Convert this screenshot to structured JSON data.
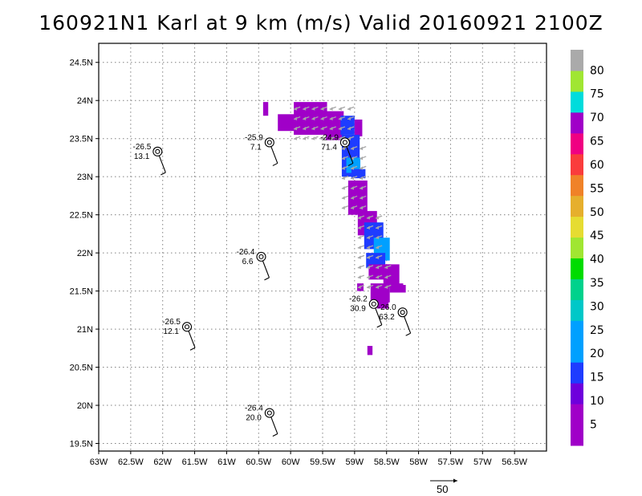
{
  "title": "160921N1 Karl at 9 km (m/s) Valid 20160921 2100Z",
  "map": {
    "lon_range": [
      -63,
      -56
    ],
    "lat_range": [
      19.4,
      24.75
    ],
    "lat_ticks": [
      {
        "value": 19.5,
        "label": "19.5N"
      },
      {
        "value": 20,
        "label": "20N"
      },
      {
        "value": 20.5,
        "label": "20.5N"
      },
      {
        "value": 21,
        "label": "21N"
      },
      {
        "value": 21.5,
        "label": "21.5N"
      },
      {
        "value": 22,
        "label": "22N"
      },
      {
        "value": 22.5,
        "label": "22.5N"
      },
      {
        "value": 23,
        "label": "23N"
      },
      {
        "value": 23.5,
        "label": "23.5N"
      },
      {
        "value": 24,
        "label": "24N"
      },
      {
        "value": 24.5,
        "label": "24.5N"
      }
    ],
    "lon_ticks": [
      {
        "value": -63,
        "label": "63W"
      },
      {
        "value": -62.5,
        "label": "62.5W"
      },
      {
        "value": -62,
        "label": "62W"
      },
      {
        "value": -61.5,
        "label": "61.5W"
      },
      {
        "value": -61,
        "label": "61W"
      },
      {
        "value": -60.5,
        "label": "60.5W"
      },
      {
        "value": -60,
        "label": "60W"
      },
      {
        "value": -59.5,
        "label": "59.5W"
      },
      {
        "value": -59,
        "label": "59W"
      },
      {
        "value": -58.5,
        "label": "58.5W"
      },
      {
        "value": -58,
        "label": "58W"
      },
      {
        "value": -57.5,
        "label": "57.5W"
      },
      {
        "value": -57,
        "label": "57W"
      },
      {
        "value": -56.5,
        "label": "56.5W"
      }
    ],
    "grid": "dotted"
  },
  "colorbar": {
    "bins": [
      {
        "label": "",
        "color": "#a000c8"
      },
      {
        "label": "5",
        "color": "#a000c8"
      },
      {
        "label": "",
        "color": "#6e00dc"
      },
      {
        "label": "10",
        "color": "#1e3cff"
      },
      {
        "label": "",
        "color": "#00a0ff"
      },
      {
        "label": "15",
        "color": "#00a0ff"
      },
      {
        "label": "20",
        "color": "#00c8c8"
      },
      {
        "label": "25",
        "color": "#00d28c"
      },
      {
        "label": "30",
        "color": "#00dc00"
      },
      {
        "label": "35",
        "color": "#a0e632"
      },
      {
        "label": "40",
        "color": "#e6dc32"
      },
      {
        "label": "45",
        "color": "#e6af2d"
      },
      {
        "label": "50",
        "color": "#f08228"
      },
      {
        "label": "55",
        "color": "#fa3c3c"
      },
      {
        "label": "60",
        "color": "#f00082"
      },
      {
        "label": "65",
        "color": "#a000c8"
      },
      {
        "label": "70",
        "color": "#00dcdc"
      },
      {
        "label": "75",
        "color": "#a0e632"
      },
      {
        "label": "80",
        "color": "#aaaaaa"
      }
    ],
    "labels": [
      "5",
      "10",
      "15",
      "20",
      "25",
      "30",
      "35",
      "40",
      "45",
      "50",
      "55",
      "60",
      "65",
      "70",
      "75",
      "80"
    ]
  },
  "dropsondes": [
    {
      "lon": -62.08,
      "lat": 23.33,
      "temp": "-26.5",
      "wind": "13.1"
    },
    {
      "lon": -60.33,
      "lat": 23.45,
      "temp": "-25.9",
      "wind": "7.1"
    },
    {
      "lon": -60.46,
      "lat": 21.95,
      "temp": "-26.4",
      "wind": "6.6"
    },
    {
      "lon": -61.62,
      "lat": 21.03,
      "temp": "-26.5",
      "wind": "12.1"
    },
    {
      "lon": -60.33,
      "lat": 19.9,
      "temp": "-26.4",
      "wind": "20.0"
    },
    {
      "lon": -59.15,
      "lat": 23.45,
      "temp": "-24.9",
      "wind": "71.4"
    },
    {
      "lon": -58.7,
      "lat": 21.33,
      "temp": "-26.2",
      "wind": "30.9"
    },
    {
      "lon": -58.25,
      "lat": 21.22,
      "temp": "-26.0",
      "wind": "63.2"
    }
  ],
  "reference_vector": {
    "label": "50",
    "units": "m/s"
  },
  "wind_field_colors": {
    "weak": "#a000c8",
    "moderate": "#1e3cff",
    "strong": "#00a0ff"
  }
}
